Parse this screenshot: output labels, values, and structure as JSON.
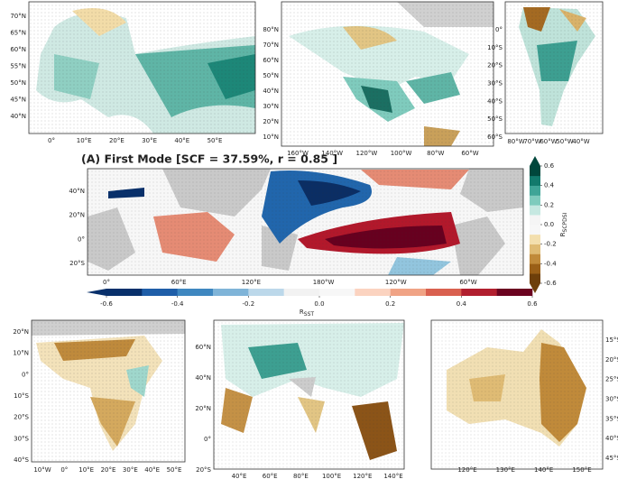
{
  "title": "(A) First Mode [SCF = 37.59%, r = 0.85 ]",
  "panels": {
    "europe": {
      "lat_labels": [
        "70°N",
        "65°N",
        "60°N",
        "55°N",
        "50°N",
        "45°N",
        "40°N"
      ],
      "lon_labels": [
        "0°",
        "10°E",
        "20°E",
        "30°E",
        "40°E",
        "50°E"
      ]
    },
    "north_america": {
      "lat_labels": [
        "80°N",
        "70°N",
        "60°N",
        "50°N",
        "40°N",
        "30°N",
        "20°N",
        "10°N"
      ],
      "lon_labels": [
        "160°W",
        "140°W",
        "120°W",
        "100°W",
        "80°W",
        "60°W"
      ]
    },
    "south_america": {
      "lat_labels": [
        "0°",
        "10°S",
        "20°S",
        "30°S",
        "40°S",
        "50°S",
        "60°S"
      ],
      "lon_labels": [
        "80°W",
        "70°W",
        "60°W",
        "50°W",
        "40°W"
      ]
    },
    "global": {
      "lat_labels": [
        "40°N",
        "20°N",
        "0°",
        "20°S"
      ],
      "lon_labels": [
        "0°",
        "60°E",
        "120°E",
        "180°W",
        "120°W",
        "60°W"
      ]
    },
    "africa": {
      "lat_labels": [
        "20°N",
        "10°N",
        "0°",
        "10°S",
        "20°S",
        "30°S",
        "40°S"
      ],
      "lon_labels": [
        "10°W",
        "0°",
        "10°E",
        "20°E",
        "30°E",
        "40°E",
        "50°E"
      ]
    },
    "asia": {
      "lat_labels": [
        "60°N",
        "40°N",
        "20°N",
        "0°",
        "20°S"
      ],
      "lon_labels": [
        "40°E",
        "60°E",
        "80°E",
        "100°E",
        "120°E",
        "140°E"
      ]
    },
    "australia": {
      "lat_labels": [
        "15°S",
        "20°S",
        "25°S",
        "30°S",
        "35°S",
        "40°S",
        "45°S"
      ],
      "lon_labels": [
        "120°E",
        "130°E",
        "140°E",
        "150°E"
      ]
    }
  },
  "sst_colorbar": {
    "label": "R",
    "label_sub": "SST",
    "lim": [
      -0.6,
      0.6
    ],
    "ticks": [
      -0.6,
      -0.4,
      -0.2,
      {
        "value": 0,
        "label": "0.0"
      },
      0.2,
      0.4,
      0.6
    ],
    "colors": [
      "#08306b",
      "#1f5ea8",
      "#3f87c0",
      "#7fb4d8",
      "#bcd8ea",
      "#f2f2f2",
      "#f7f7f7",
      "#fbd3c0",
      "#f0a385",
      "#d9604f",
      "#b11f2f",
      "#6b0320"
    ]
  },
  "scpdsi_colorbar": {
    "label": "R",
    "label_sub": "SCPDSI",
    "lim": [
      -0.6,
      0.6
    ],
    "ticks": [
      0.6,
      0.4,
      0.2,
      {
        "value": 0,
        "label": "0.0"
      },
      -0.2,
      -0.4,
      -0.6
    ],
    "colors": [
      "#6e3f0a",
      "#9a5f17",
      "#c08a3a",
      "#dfbb74",
      "#f3dfae",
      "#f7f7f7",
      "#f5f5f5",
      "#c6e8e1",
      "#7fcbbd",
      "#3fa597",
      "#127a6c",
      "#00473c"
    ]
  }
}
